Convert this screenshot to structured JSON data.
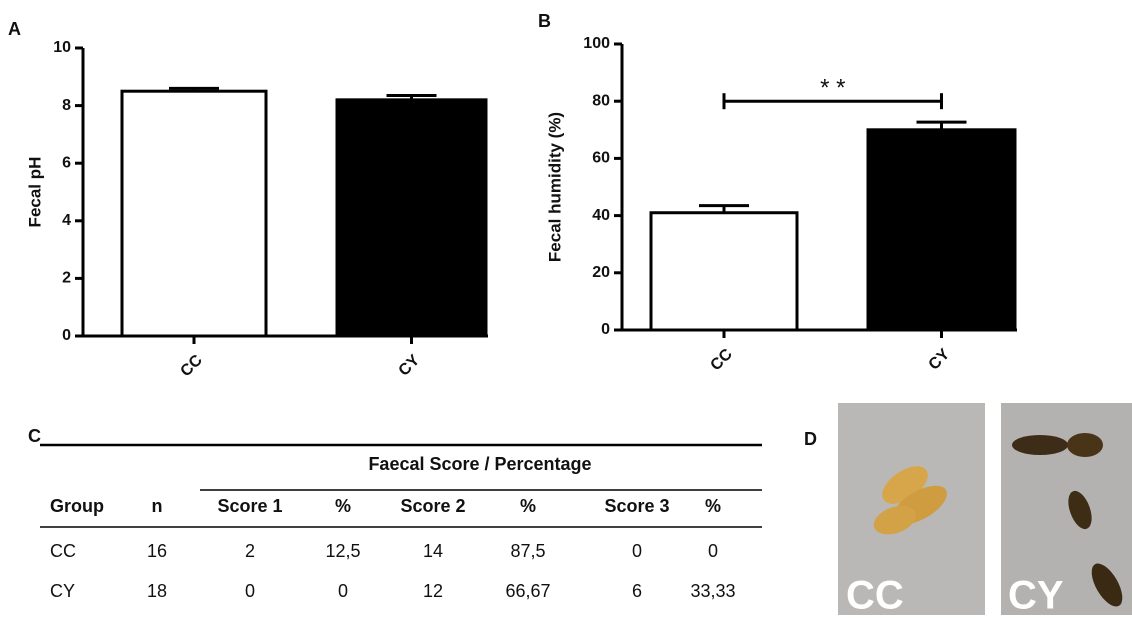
{
  "panels": [
    "A",
    "B",
    "C",
    "D"
  ],
  "chart_data": [
    {
      "type": "bar",
      "ylabel": "Fecal pH",
      "categories": [
        "CC",
        "CY"
      ],
      "values": [
        8.5,
        8.2
      ],
      "errors": [
        0.1,
        0.15
      ],
      "colors": [
        "#ffffff",
        "#000000"
      ],
      "ylim": [
        0,
        10
      ],
      "yticks": [
        0,
        2,
        4,
        6,
        8,
        10
      ]
    },
    {
      "type": "bar",
      "ylabel": "Fecal humidity (%)",
      "categories": [
        "CC",
        "CY"
      ],
      "values": [
        41,
        70
      ],
      "errors": [
        2.5,
        2.7
      ],
      "colors": [
        "#ffffff",
        "#000000"
      ],
      "ylim": [
        0,
        100
      ],
      "yticks": [
        0,
        20,
        40,
        60,
        80,
        100
      ],
      "annotation": {
        "text": "* *",
        "y": 80
      }
    }
  ],
  "table": {
    "title": "Faecal Score / Percentage",
    "header": [
      "Group",
      "n",
      "Score 1",
      "%",
      "Score 2",
      "%",
      "Score 3",
      "%"
    ],
    "rows": [
      [
        "CC",
        "16",
        "2",
        "12,5",
        "14",
        "87,5",
        "0",
        "0"
      ],
      [
        "CY",
        "18",
        "0",
        "0",
        "12",
        "66,67",
        "6",
        "33,33"
      ]
    ]
  },
  "photos": [
    "CC",
    "CY"
  ]
}
